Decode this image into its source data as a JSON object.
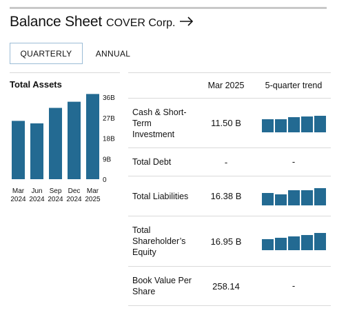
{
  "header": {
    "title": "Balance Sheet",
    "company": "COVER Corp.",
    "arrow_icon": "arrow-right-icon"
  },
  "tabs": [
    {
      "label": "QUARTERLY",
      "active": true
    },
    {
      "label": "ANNUAL",
      "active": false
    }
  ],
  "chart_data": {
    "type": "bar",
    "title": "Total Assets",
    "categories": [
      [
        "Mar",
        "2024"
      ],
      [
        "Jun",
        "2024"
      ],
      [
        "Sep",
        "2024"
      ],
      [
        "Dec",
        "2024"
      ],
      [
        "Mar",
        "2025"
      ]
    ],
    "values": [
      25.6,
      24.5,
      31.3,
      34.0,
      37.4
    ],
    "ylim": [
      0,
      36
    ],
    "yticks": [
      "36B",
      "27B",
      "18B",
      "9B",
      "0"
    ],
    "tick_values": [
      36,
      27,
      18,
      9,
      0
    ],
    "color": "#236a92"
  },
  "table": {
    "columns": [
      "",
      "Mar 2025",
      "5-quarter trend"
    ],
    "rows": [
      {
        "label": "Cash & Short-Term Investment",
        "value": "11.50 B",
        "trend": [
          0.72,
          0.72,
          0.86,
          0.9,
          0.92
        ]
      },
      {
        "label": "Total Debt",
        "value": "-",
        "trend_text": "-"
      },
      {
        "label": "Total Liabilities",
        "value": "16.38 B",
        "trend": [
          0.7,
          0.62,
          0.86,
          0.86,
          0.96
        ]
      },
      {
        "label": "Total Shareholder’s Equity",
        "value": "16.95 B",
        "trend": [
          0.62,
          0.7,
          0.76,
          0.84,
          0.96
        ]
      },
      {
        "label": "Book Value Per Share",
        "value": "258.14",
        "trend_text": "-"
      }
    ],
    "bar_color": "#236a92"
  }
}
